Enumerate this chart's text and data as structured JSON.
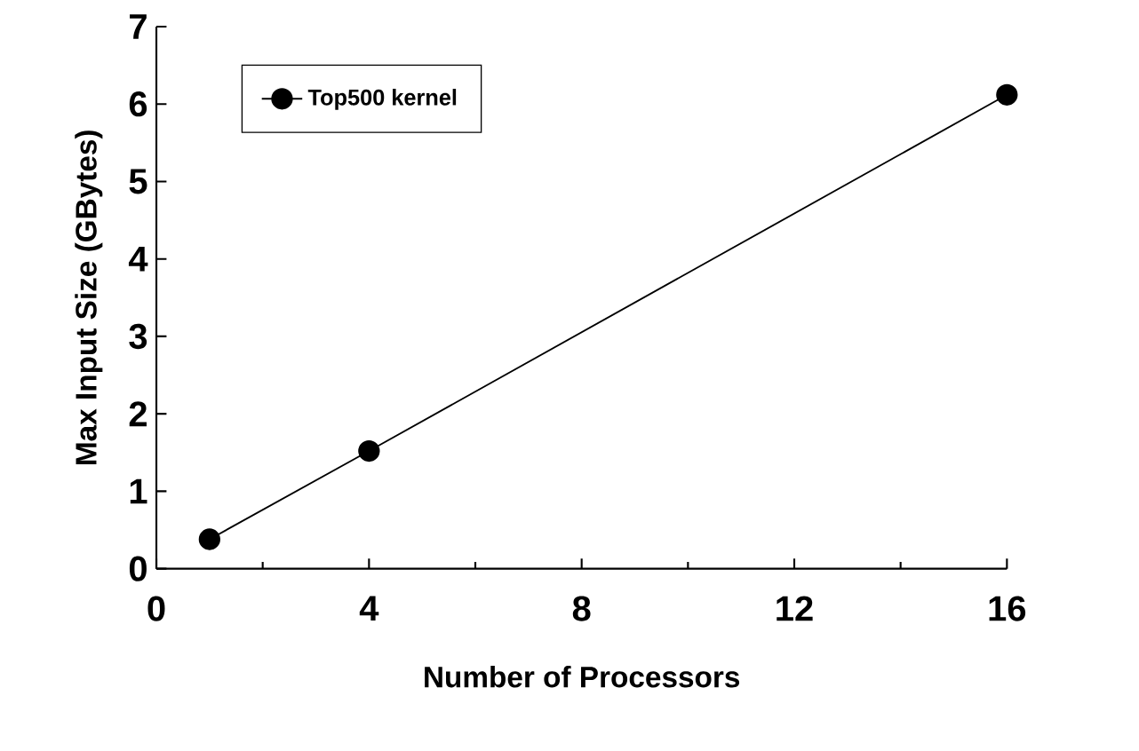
{
  "chart_data": {
    "type": "line",
    "xlabel": "Number of Processors",
    "ylabel": "Max Input Size (GBytes)",
    "x": [
      1,
      4,
      16
    ],
    "series": [
      {
        "name": "Top500 kernel",
        "color": "#000000",
        "values": [
          0.38,
          1.52,
          6.12
        ]
      }
    ],
    "xlim": [
      0,
      16
    ],
    "ylim": [
      0,
      7
    ],
    "xticks": [
      0,
      4,
      8,
      12,
      16
    ],
    "yticks": [
      0,
      1,
      2,
      3,
      4,
      5,
      6,
      7
    ],
    "grid": false,
    "legend": "top left",
    "marker": "circle",
    "line_style": "solid"
  }
}
